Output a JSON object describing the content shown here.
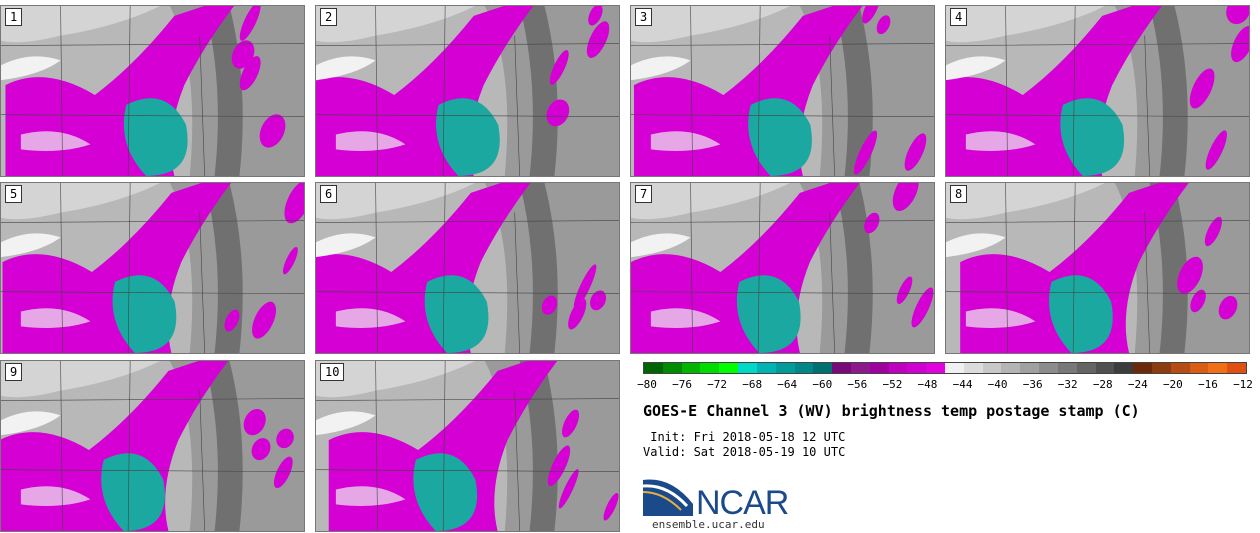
{
  "panels": [
    {
      "label": "1"
    },
    {
      "label": "2"
    },
    {
      "label": "3"
    },
    {
      "label": "4"
    },
    {
      "label": "5"
    },
    {
      "label": "6"
    },
    {
      "label": "7"
    },
    {
      "label": "8"
    },
    {
      "label": "9"
    },
    {
      "label": "10"
    }
  ],
  "colorbar": {
    "colors": [
      "#006400",
      "#008c00",
      "#00b400",
      "#00dc00",
      "#00ff00",
      "#00d8c8",
      "#00b4b4",
      "#009c9c",
      "#008888",
      "#007070",
      "#7a0a7a",
      "#8c1a8c",
      "#a000a0",
      "#c000c0",
      "#d000d0",
      "#e000e0",
      "#f0f0f0",
      "#dcdcdc",
      "#c8c8c8",
      "#b4b4b4",
      "#a0a0a0",
      "#8c8c8c",
      "#787878",
      "#646464",
      "#505050",
      "#3c3c3c",
      "#6b2a0a",
      "#8c3c10",
      "#b44c14",
      "#d85c14",
      "#f06e14",
      "#e05010"
    ],
    "ticks": [
      "−80",
      "−76",
      "−72",
      "−68",
      "−64",
      "−60",
      "−56",
      "−52",
      "−48",
      "−44",
      "−40",
      "−36",
      "−32",
      "−28",
      "−24",
      "−20",
      "−16",
      "−12"
    ]
  },
  "title": "GOES-E Channel 3 (WV) brightness temp postage stamp (C)",
  "init_text": " Init: Fri 2018-05-18 12 UTC",
  "valid_text": "Valid: Sat 2018-05-19 10 UTC",
  "logo": {
    "name": "NCAR",
    "url": "ensemble.ucar.edu"
  },
  "colors": {
    "magenta": "#d400d4",
    "teal": "#1aa8a0",
    "gray_light": "#bdbdbd",
    "gray_dark": "#6e6e6e"
  }
}
